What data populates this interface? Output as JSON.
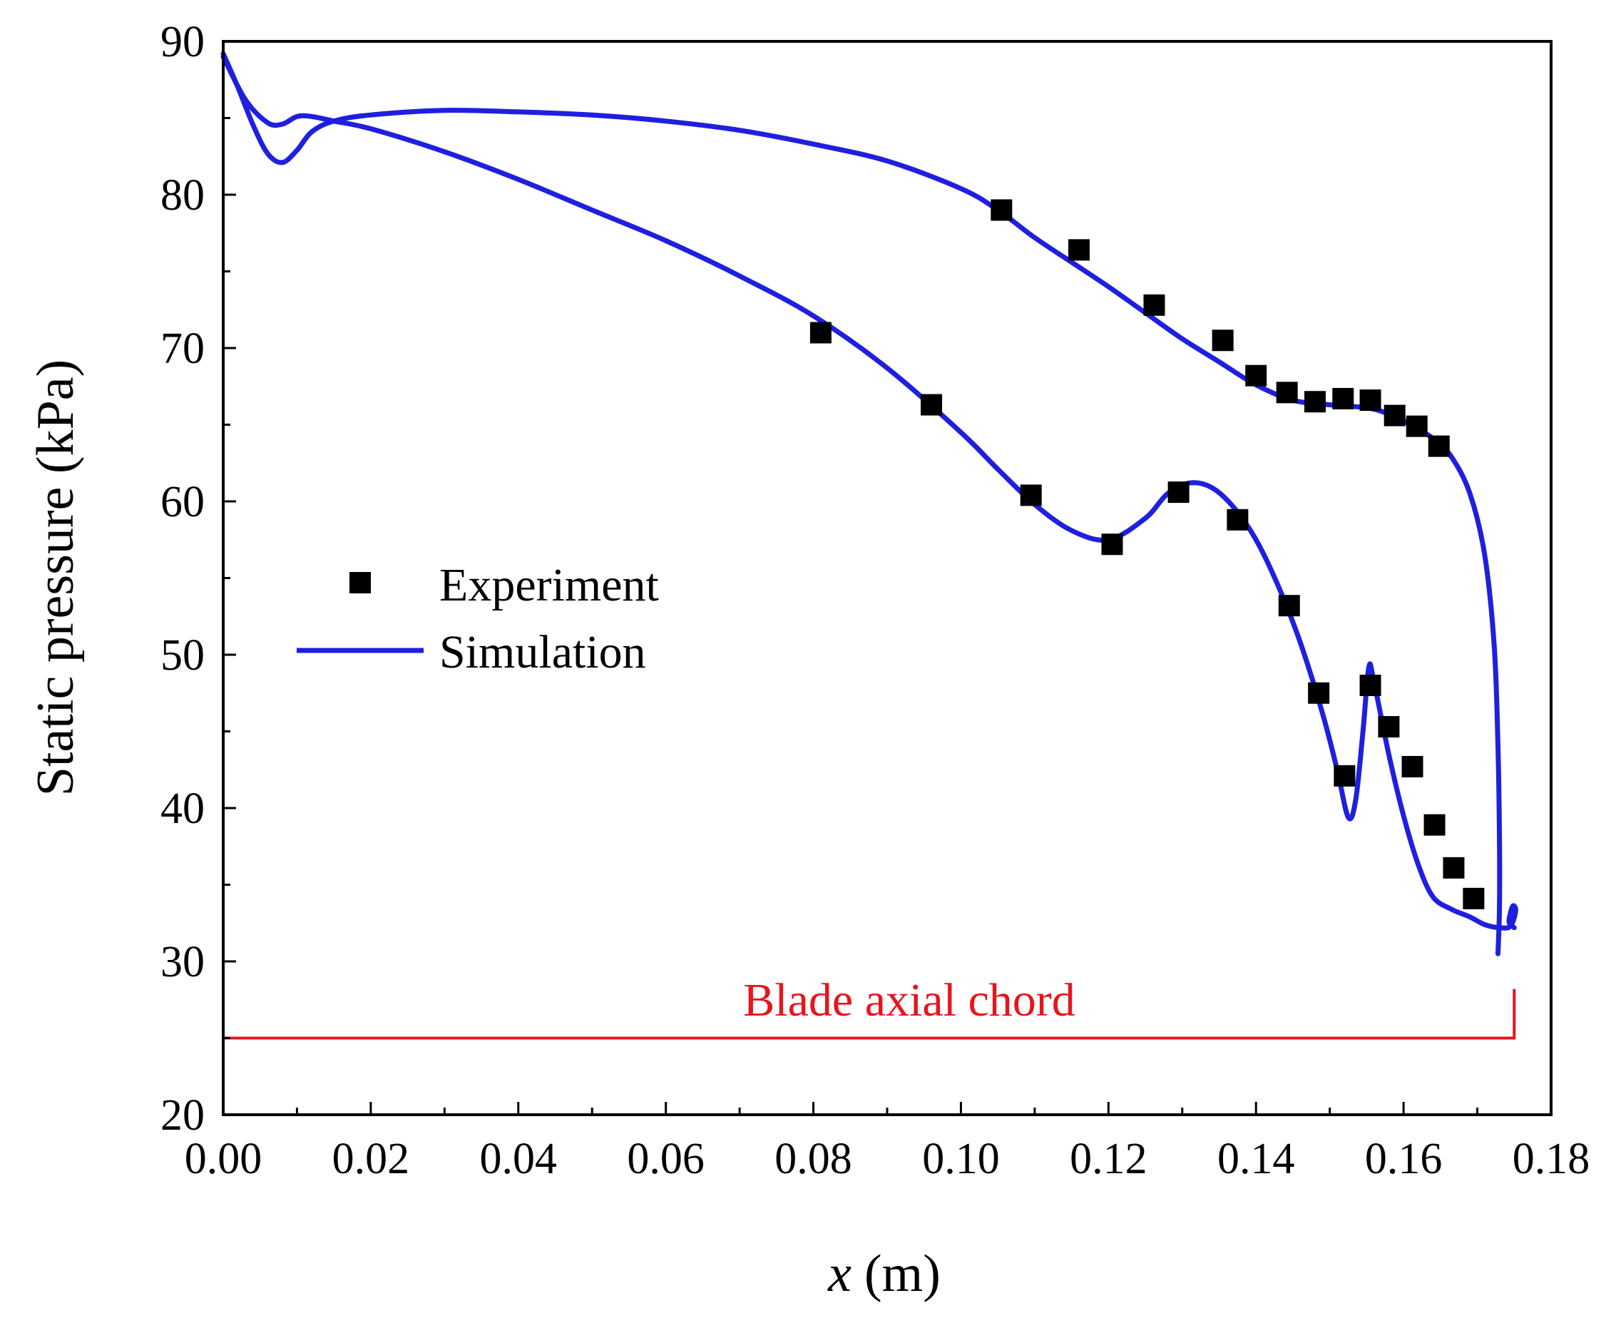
{
  "chart_data": {
    "type": "line",
    "title": "",
    "xlabel_var": "x",
    "xlabel_unit": "(m)",
    "ylabel": "Static pressure (kPa)",
    "xlim": [
      0,
      0.18
    ],
    "ylim": [
      20,
      90
    ],
    "x_ticks": [
      "0.00",
      "0.02",
      "0.04",
      "0.06",
      "0.08",
      "0.10",
      "0.12",
      "0.14",
      "0.16",
      "0.18"
    ],
    "y_ticks": [
      "20",
      "30",
      "40",
      "50",
      "60",
      "70",
      "80",
      "90"
    ],
    "legend": {
      "placement": "center-left",
      "entries": [
        "Experiment",
        "Simulation"
      ]
    },
    "colors": {
      "simulation": "#1f1fe0",
      "experiment": "#000000",
      "annotation": "#e8141c"
    },
    "annotation": {
      "text": "Blade axial chord",
      "x_start": 0.0,
      "x_end": 0.175,
      "y": 25
    },
    "series": [
      {
        "name": "Experiment",
        "type": "scatter",
        "points": [
          [
            0.081,
            71.0
          ],
          [
            0.096,
            66.3
          ],
          [
            0.1095,
            60.4
          ],
          [
            0.1205,
            57.2
          ],
          [
            0.1295,
            60.6
          ],
          [
            0.1375,
            58.8
          ],
          [
            0.1445,
            53.2
          ],
          [
            0.1485,
            47.5
          ],
          [
            0.152,
            42.1
          ],
          [
            0.1555,
            48.0
          ],
          [
            0.158,
            45.3
          ],
          [
            0.1612,
            42.7
          ],
          [
            0.1642,
            38.9
          ],
          [
            0.1668,
            36.1
          ],
          [
            0.1695,
            34.1
          ],
          [
            0.1055,
            79.0
          ],
          [
            0.116,
            76.4
          ],
          [
            0.1262,
            72.8
          ],
          [
            0.1355,
            70.5
          ],
          [
            0.14,
            68.2
          ],
          [
            0.1442,
            67.1
          ],
          [
            0.148,
            66.5
          ],
          [
            0.1518,
            66.7
          ],
          [
            0.1555,
            66.6
          ],
          [
            0.1588,
            65.6
          ],
          [
            0.1618,
            64.9
          ],
          [
            0.1648,
            63.6
          ]
        ]
      },
      {
        "name": "Simulation",
        "type": "line",
        "segments": [
          [
            [
              0.0,
              89.0
            ],
            [
              0.003,
              86.2
            ],
            [
              0.006,
              84.7
            ],
            [
              0.008,
              84.6
            ],
            [
              0.01,
              85.1
            ],
            [
              0.012,
              85.1
            ],
            [
              0.015,
              84.8
            ],
            [
              0.02,
              84.3
            ],
            [
              0.03,
              82.8
            ],
            [
              0.04,
              81.0
            ],
            [
              0.05,
              79.0
            ],
            [
              0.06,
              77.0
            ],
            [
              0.07,
              74.7
            ],
            [
              0.08,
              72.1
            ],
            [
              0.09,
              68.7
            ],
            [
              0.1,
              64.5
            ],
            [
              0.105,
              62.1
            ],
            [
              0.11,
              59.8
            ],
            [
              0.115,
              58.1
            ],
            [
              0.12,
              57.5
            ],
            [
              0.125,
              58.9
            ],
            [
              0.128,
              60.5
            ],
            [
              0.131,
              61.2
            ],
            [
              0.134,
              60.9
            ],
            [
              0.137,
              59.6
            ],
            [
              0.14,
              57.5
            ],
            [
              0.143,
              54.5
            ],
            [
              0.146,
              50.8
            ],
            [
              0.149,
              46.2
            ],
            [
              0.151,
              42.5
            ],
            [
              0.1525,
              39.4
            ],
            [
              0.1535,
              40.5
            ],
            [
              0.1545,
              45.0
            ],
            [
              0.1553,
              49.2
            ],
            [
              0.156,
              48.2
            ],
            [
              0.158,
              43.5
            ],
            [
              0.16,
              39.5
            ],
            [
              0.162,
              36.3
            ],
            [
              0.164,
              34.2
            ],
            [
              0.1665,
              33.4
            ],
            [
              0.169,
              32.9
            ],
            [
              0.171,
              32.4
            ],
            [
              0.173,
              32.2
            ],
            [
              0.1745,
              32.3
            ],
            [
              0.1752,
              33.3
            ],
            [
              0.1748,
              33.6
            ],
            [
              0.1743,
              32.6
            ],
            [
              0.175,
              32.2
            ]
          ],
          [
            [
              0.0,
              89.2
            ],
            [
              0.002,
              87.0
            ],
            [
              0.004,
              84.6
            ],
            [
              0.006,
              82.7
            ],
            [
              0.008,
              82.1
            ],
            [
              0.01,
              82.9
            ],
            [
              0.012,
              84.1
            ],
            [
              0.015,
              84.8
            ],
            [
              0.02,
              85.2
            ],
            [
              0.03,
              85.5
            ],
            [
              0.04,
              85.4
            ],
            [
              0.05,
              85.2
            ],
            [
              0.06,
              84.8
            ],
            [
              0.07,
              84.2
            ],
            [
              0.08,
              83.3
            ],
            [
              0.09,
              82.2
            ],
            [
              0.1,
              80.4
            ],
            [
              0.105,
              79.0
            ],
            [
              0.11,
              77.2
            ],
            [
              0.115,
              75.6
            ],
            [
              0.12,
              74.0
            ],
            [
              0.125,
              72.3
            ],
            [
              0.13,
              70.6
            ],
            [
              0.135,
              69.1
            ],
            [
              0.14,
              67.6
            ],
            [
              0.145,
              66.6
            ],
            [
              0.15,
              66.3
            ],
            [
              0.155,
              66.1
            ],
            [
              0.158,
              65.7
            ],
            [
              0.161,
              65.0
            ],
            [
              0.164,
              64.1
            ],
            [
              0.1665,
              62.9
            ],
            [
              0.169,
              60.5
            ],
            [
              0.171,
              56.5
            ],
            [
              0.1723,
              50.5
            ],
            [
              0.1728,
              44.0
            ],
            [
              0.173,
              38.0
            ],
            [
              0.173,
              33.5
            ],
            [
              0.1728,
              30.5
            ]
          ]
        ]
      }
    ]
  }
}
